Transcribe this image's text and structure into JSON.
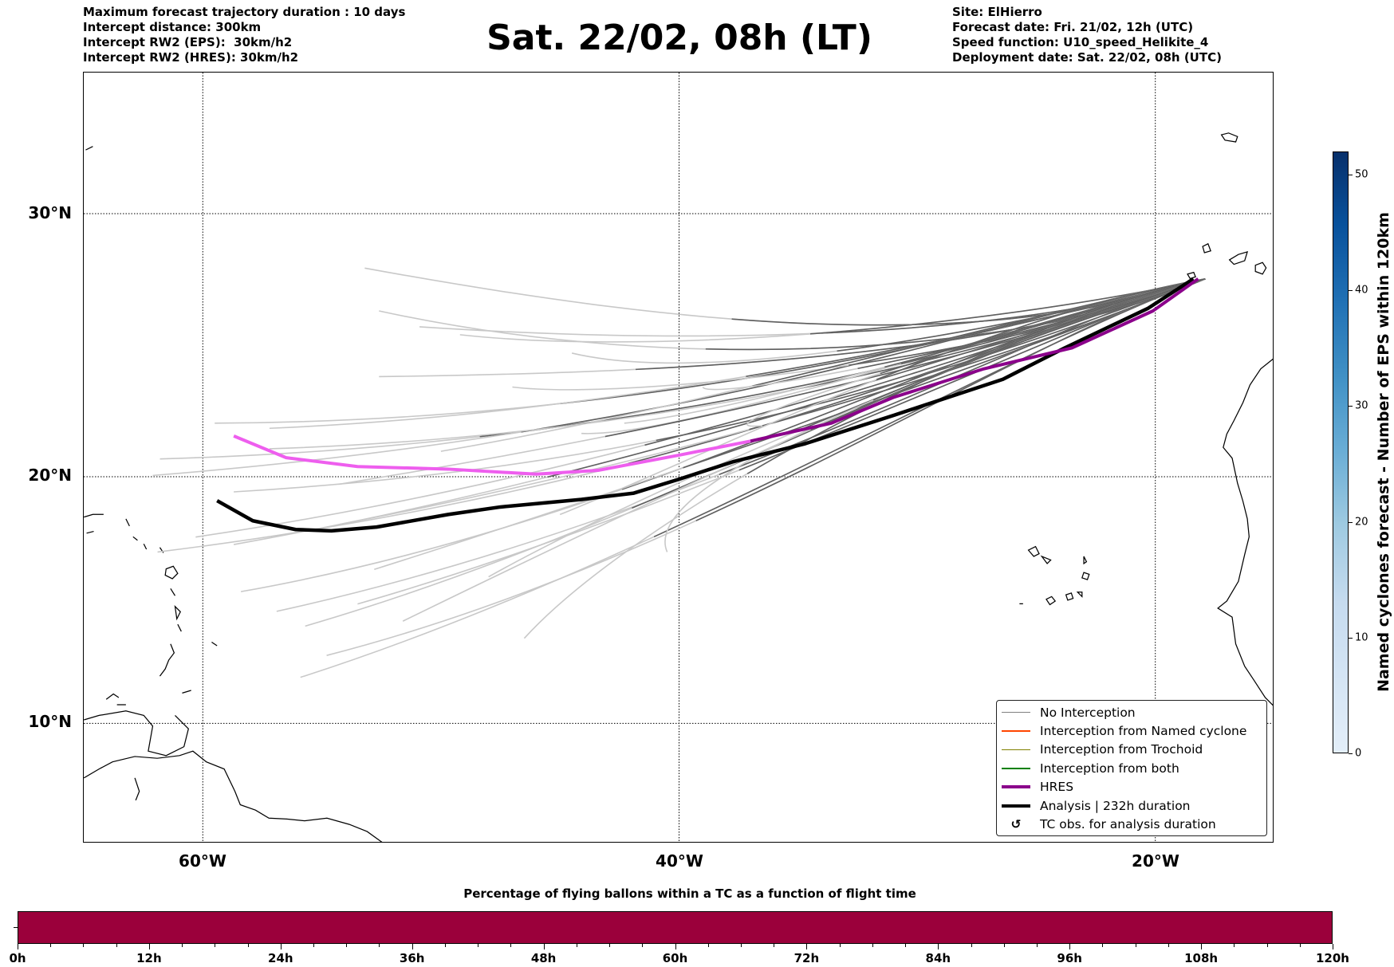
{
  "header": {
    "left": [
      "Maximum forecast trajectory duration : 10 days",
      "Intercept distance: 300km",
      "Intercept RW2 (EPS):  30km/h2",
      "Intercept RW2 (HRES): 30km/h2"
    ],
    "title": "Sat. 22/02, 08h (LT)",
    "right": [
      "Site: ElHierro",
      "Forecast date: Fri. 21/02, 12h (UTC)",
      "Speed function: U10_speed_Helikite_4",
      "Deployment date: Sat. 22/02, 08h (UTC)"
    ]
  },
  "chart_data": [
    {
      "type": "line",
      "title": "Balloon trajectory map",
      "projection": "mercator",
      "xlim": [
        -65,
        -15
      ],
      "ylim": [
        5,
        35
      ],
      "lat_ticks": [
        {
          "v": 30,
          "label": "30°N"
        },
        {
          "v": 20,
          "label": "20°N"
        },
        {
          "v": 10,
          "label": "10°N"
        }
      ],
      "lon_ticks": [
        {
          "v": -60,
          "label": "60°W"
        },
        {
          "v": -40,
          "label": "40°W"
        },
        {
          "v": -20,
          "label": "20°W"
        }
      ],
      "grid": true,
      "launch": [
        -17.9,
        27.6
      ],
      "hres": {
        "lon": [
          -18.2,
          -20.1,
          -23.5,
          -27.2,
          -31.0,
          -33.6,
          -37.0,
          -40.0,
          -43.4,
          -46.0,
          -49.7,
          -53.5,
          -56.5,
          -58.7
        ],
        "lat": [
          27.6,
          26.4,
          25.0,
          24.2,
          23.1,
          22.1,
          21.4,
          20.85,
          20.25,
          20.1,
          20.3,
          20.4,
          20.75,
          21.6
        ],
        "color_east": "#8b008b",
        "color_west": "#ee5eee",
        "split_lon": -38
      },
      "analysis": {
        "lon": [
          -18.4,
          -20.3,
          -23.8,
          -26.4,
          -31.0,
          -34.7,
          -37.7,
          -40.0,
          -41.9,
          -44.1,
          -47.5,
          -49.7,
          -52.7,
          -54.6,
          -56.1,
          -57.9,
          -59.4
        ],
        "lat": [
          27.6,
          26.5,
          25.0,
          23.8,
          22.4,
          21.3,
          20.6,
          19.9,
          19.35,
          19.1,
          18.8,
          18.5,
          18.0,
          17.85,
          17.9,
          18.25,
          19.05
        ],
        "color": "#000000"
      },
      "ensemble_endpoints": [
        [
          -53.2,
          28.0
        ],
        [
          -52.6,
          26.4
        ],
        [
          -50.9,
          25.8
        ],
        [
          -49.2,
          25.5
        ],
        [
          -44.5,
          24.8
        ],
        [
          -52.6,
          23.9
        ],
        [
          -59.5,
          22.1
        ],
        [
          -57.2,
          21.9
        ],
        [
          -61.8,
          20.7
        ],
        [
          -62.1,
          20.05
        ],
        [
          -60.3,
          17.6
        ],
        [
          -58.7,
          17.3
        ],
        [
          -61.9,
          17.0
        ],
        [
          -58.4,
          15.4
        ],
        [
          -56.9,
          14.6
        ],
        [
          -55.7,
          14.0
        ],
        [
          -54.8,
          12.8
        ],
        [
          -55.9,
          11.9
        ],
        [
          -53.5,
          14.9
        ],
        [
          -51.6,
          14.2
        ],
        [
          -54.3,
          18.1
        ],
        [
          -58.7,
          19.4
        ],
        [
          -57.2,
          21.1
        ],
        [
          -44.1,
          21.7
        ],
        [
          -42.3,
          22.1
        ],
        [
          -54.3,
          19.7
        ],
        [
          -52.8,
          16.3
        ],
        [
          -47.0,
          23.5
        ],
        [
          -48.0,
          16.0
        ],
        [
          -45.0,
          18.5
        ],
        [
          -50.0,
          21.0
        ],
        [
          -39.0,
          23.5
        ],
        [
          -36.5,
          22.0
        ],
        [
          -40.5,
          17.0
        ],
        [
          -46.5,
          13.5
        ]
      ],
      "ensemble_colors": {
        "near": "#5f5f5f",
        "far": "#c8c8c8"
      },
      "legend": {
        "placement": "lower-right",
        "items": [
          {
            "label": "No Interception",
            "color": "#808080",
            "kind": "thin"
          },
          {
            "label": "Interception from Named cyclone",
            "color": "#ff4500",
            "kind": "thin"
          },
          {
            "label": "Interception from Trochoid",
            "color": "#808000",
            "kind": "thin"
          },
          {
            "label": "Interception from both",
            "color": "#008000",
            "kind": "thin"
          },
          {
            "label": "HRES",
            "color": "#8b008b",
            "kind": "thick"
          },
          {
            "label": "Analysis | 232h duration",
            "color": "#000000",
            "kind": "thick"
          },
          {
            "label": "TC obs. for analysis duration",
            "color": "#000000",
            "kind": "marker",
            "symbol": "↺"
          }
        ]
      }
    },
    {
      "type": "colorbar",
      "label": "Named cyclones forecast - Number of EPS within 120km",
      "range": [
        0,
        52
      ],
      "ticks": [
        "0",
        "10",
        "20",
        "30",
        "40",
        "50"
      ],
      "cmap": "Blues"
    },
    {
      "type": "bar",
      "title": "Percentage of flying ballons within a TC as a function of flight time",
      "xlim": [
        0,
        120
      ],
      "tick_labels": [
        "0h",
        "12h",
        "24h",
        "36h",
        "48h",
        "60h",
        "72h",
        "84h",
        "96h",
        "108h",
        "120h"
      ],
      "fill_color": "#9b003b",
      "filled_fraction": 1.0
    }
  ]
}
